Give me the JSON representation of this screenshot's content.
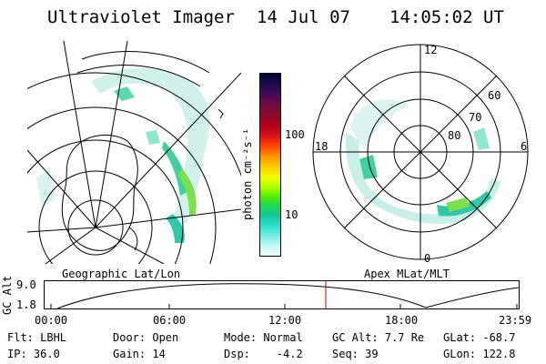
{
  "header": {
    "instrument": "Ultraviolet Imager",
    "date": "14 Jul 07",
    "time": "14:05:02 UT"
  },
  "geo_panel": {
    "label": "Geographic Lat/Lon"
  },
  "colorbar": {
    "label": "photon cm⁻²s⁻¹",
    "ticks": [
      "100",
      "10"
    ],
    "colors": [
      "#000033",
      "#1a0a4a",
      "#3d0a5a",
      "#6a0a4a",
      "#8a0a2a",
      "#b0001a",
      "#d8101a",
      "#ff4a00",
      "#ff9a00",
      "#ffd200",
      "#f0ff00",
      "#b4ff00",
      "#5cf000",
      "#1fd84a",
      "#14c8a0",
      "#30e0d0",
      "#80f0ea",
      "#c8f8f6",
      "#eefcfc"
    ]
  },
  "polar_panel": {
    "label": "Apex MLat/MLT",
    "mlt_labels": {
      "top": "12",
      "bottom": "0",
      "left": "18",
      "right": "6"
    },
    "lat_labels": [
      "60",
      "70",
      "80"
    ]
  },
  "gc_alt_plot": {
    "ylabel": "GC Alt",
    "y_ticks": [
      "9.0",
      "1.8"
    ],
    "x_ticks": [
      "00:00",
      "06:00",
      "12:00",
      "18:00",
      "23:59"
    ],
    "current_time_marker": "14:05"
  },
  "status": {
    "row1": {
      "filter": "Flt: LBHL",
      "door": "Door: Open",
      "mode": "Mode: Normal",
      "gc_alt": "GC Alt: 7.7 Re",
      "glat": "GLat: -68.7"
    },
    "row2": {
      "ip": "IP: 36.0",
      "gain": "Gain: 14",
      "dsp": "Dsp:    -4.2",
      "seq": "Seq: 39",
      "glon": "GLon: 122.8"
    }
  },
  "colors": {
    "foreground": "#000000",
    "background": "#ffffff",
    "marker": "#cc0000"
  }
}
